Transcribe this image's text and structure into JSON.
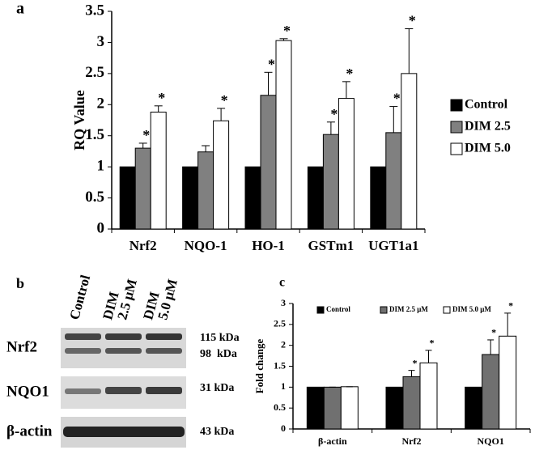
{
  "chart_data": [
    {
      "type": "bar",
      "panel_label": "a",
      "y_label": "RQ Value",
      "categories": [
        "Nrf2",
        "NQO-1",
        "HO-1",
        "GSTm1",
        "UGT1a1"
      ],
      "series": [
        {
          "name": "Control",
          "color": "#000000",
          "values": [
            1,
            1,
            1,
            1,
            1
          ]
        },
        {
          "name": "DIM 2.5",
          "color": "#808080",
          "values": [
            1.3,
            1.24,
            2.15,
            1.52,
            1.55
          ],
          "errors": [
            0.08,
            0.1,
            0.37,
            0.2,
            0.42
          ],
          "annotations": [
            "*",
            null,
            "*",
            "*",
            "*"
          ]
        },
        {
          "name": "DIM 5.0",
          "color": "#ffffff",
          "values": [
            1.88,
            1.74,
            3.03,
            2.1,
            2.5
          ],
          "errors": [
            0.1,
            0.2,
            0.03,
            0.27,
            0.72
          ],
          "annotations": [
            "*",
            "*",
            "*",
            "*",
            "*"
          ]
        }
      ],
      "ylim": [
        0,
        3.5
      ],
      "yticks": [
        0,
        0.5,
        1,
        1.5,
        2,
        2.5,
        3,
        3.5
      ],
      "legend": "right"
    },
    {
      "type": "bar",
      "panel_label": "c",
      "y_label": "Fold change",
      "categories": [
        "β-actin",
        "Nrf2",
        "NQO1"
      ],
      "series": [
        {
          "name": "Control",
          "color": "#000000",
          "values": [
            1,
            1,
            1
          ]
        },
        {
          "name": "DIM 2.5 μM",
          "color": "#707070",
          "values": [
            1,
            1.25,
            1.78
          ],
          "errors": [
            0,
            0.15,
            0.35
          ],
          "annotations": [
            null,
            "*",
            "*"
          ]
        },
        {
          "name": "DIM 5.0 μM",
          "color": "#ffffff",
          "values": [
            1.01,
            1.58,
            2.22
          ],
          "errors": [
            0,
            0.3,
            0.55
          ],
          "annotations": [
            null,
            "*",
            "*"
          ]
        }
      ],
      "ylim": [
        0,
        3
      ],
      "yticks": [
        0,
        0.5,
        1,
        1.5,
        2,
        2.5,
        3
      ],
      "legend": "top"
    }
  ],
  "blot": {
    "panel_label": "b",
    "lanes": [
      [
        "Control"
      ],
      [
        "DIM",
        "2.5 μM"
      ],
      [
        "DIM",
        "5.0 μM"
      ]
    ],
    "rows": [
      {
        "label": "Nrf2",
        "sizes": [
          "115 kDa",
          "98  kDa"
        ]
      },
      {
        "label": "NQO1",
        "sizes": [
          "31 kDa"
        ]
      },
      {
        "label": "β-actin",
        "sizes": [
          "43 kDa"
        ]
      }
    ]
  }
}
